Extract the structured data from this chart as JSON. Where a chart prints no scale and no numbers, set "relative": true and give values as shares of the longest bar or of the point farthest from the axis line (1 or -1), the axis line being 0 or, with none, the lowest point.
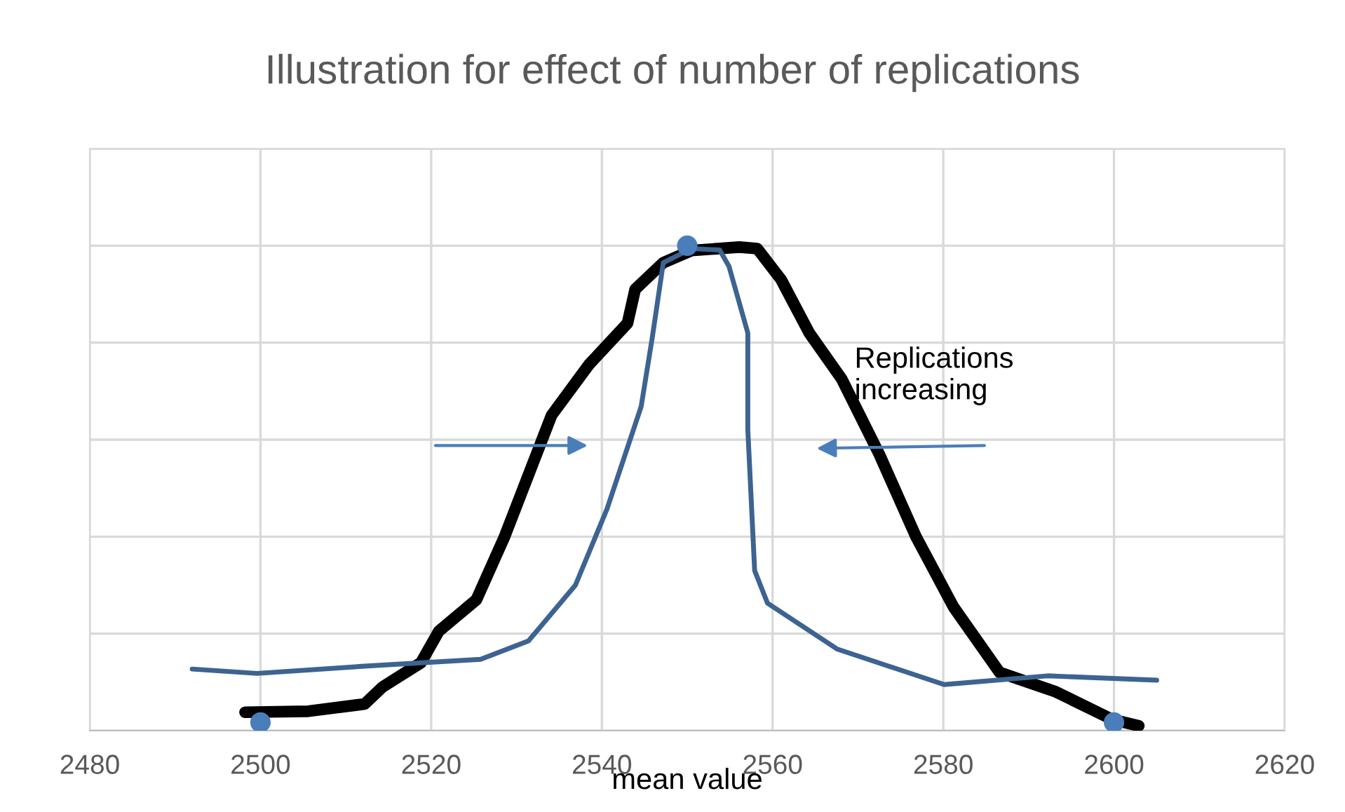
{
  "chart_data": {
    "type": "line",
    "title": "Illustration for effect of number of replications",
    "xlabel": "mean value",
    "relative": true,
    "tick_labels": "x",
    "grid": true,
    "legend": false,
    "xlim": [
      2480,
      2620
    ],
    "xticks": [
      2480,
      2500,
      2520,
      2540,
      2560,
      2580,
      2600,
      2620
    ],
    "annotations": [
      "Replications\nincreasing"
    ],
    "series": [
      {
        "color": "#000000",
        "x": [
          2498.2,
          2505.6,
          2512.2,
          2514.3,
          2518.8,
          2520.9,
          2525.3,
          2528.6,
          2531.9,
          2534.1,
          2538.5,
          2543,
          2543.9,
          2547.2,
          2550.5,
          2556.1,
          2558.2,
          2561,
          2564.3,
          2568.1,
          2572.5,
          2576.8,
          2581.2,
          2586.6,
          2593.2,
          2599.8,
          2602.9
        ],
        "values": [
          0.038,
          0.04,
          0.055,
          0.09,
          0.14,
          0.205,
          0.27,
          0.4,
          0.55,
          0.65,
          0.755,
          0.84,
          0.91,
          0.965,
          0.99,
          0.997,
          0.994,
          0.93,
          0.82,
          0.725,
          0.57,
          0.4,
          0.255,
          0.12,
          0.08,
          0.023,
          0.01
        ]
      },
      {
        "color": "#3d6391",
        "x": [
          2492,
          2499.6,
          2512.2,
          2525.8,
          2531.4,
          2536.9,
          2540.6,
          2544.6,
          2545.9,
          2547.2,
          2550.5,
          2553.8,
          2554.9,
          2557.1,
          2557.1,
          2557.9,
          2559.4,
          2567.6,
          2580.1,
          2592.2,
          2605
        ],
        "values": [
          0.127,
          0.118,
          0.133,
          0.147,
          0.185,
          0.3,
          0.457,
          0.668,
          0.81,
          0.965,
          0.994,
          0.991,
          0.957,
          0.82,
          0.62,
          0.33,
          0.263,
          0.168,
          0.095,
          0.113,
          0.104
        ]
      },
      {
        "type": "scatter",
        "color": "#4a7ebb",
        "marker": "circle",
        "x": [
          2500,
          2550,
          2600
        ],
        "values": [
          0.017,
          1.0,
          0.017
        ]
      }
    ]
  }
}
